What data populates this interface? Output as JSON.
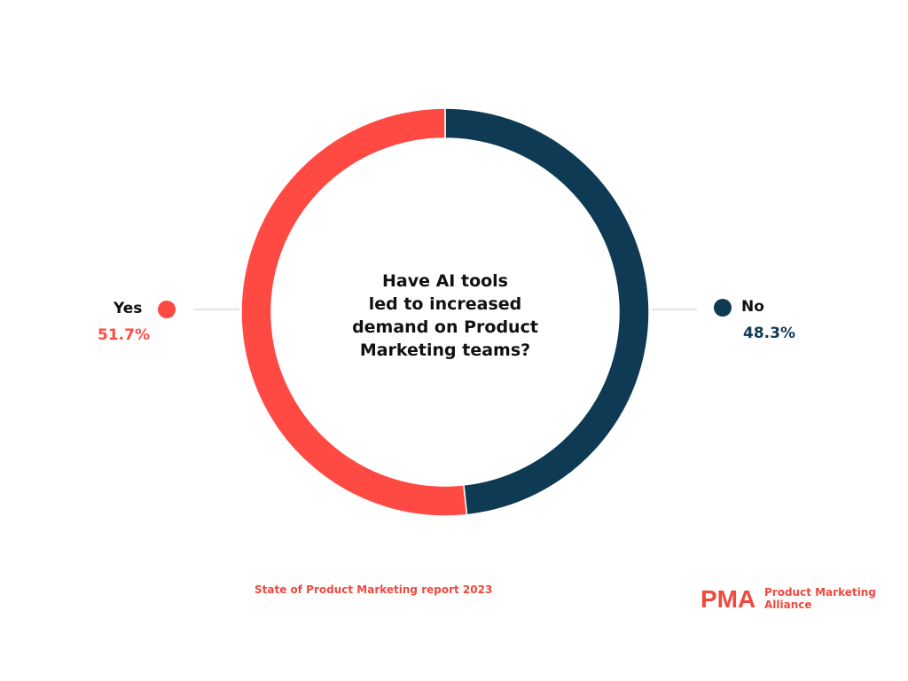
{
  "chart_data": {
    "type": "pie",
    "donut": true,
    "title_lines": [
      "Have AI tools",
      "led to increased",
      "demand on Product",
      "Marketing teams?"
    ],
    "slices": [
      {
        "label": "Yes",
        "value": 51.7,
        "value_label": "51.7%",
        "color": "#ff4a44"
      },
      {
        "label": "No",
        "value": 48.3,
        "value_label": "48.3%",
        "color": "#0f3a54"
      }
    ]
  },
  "footer": {
    "source": "State of Product Marketing report 2023",
    "brand_mark": "PMA",
    "brand_lines": [
      "Product Marketing",
      "Alliance"
    ]
  },
  "colors": {
    "accent": "#f0493e",
    "yes": "#ff4a44",
    "no": "#0f3a54",
    "connector": "#c8c8c8"
  }
}
